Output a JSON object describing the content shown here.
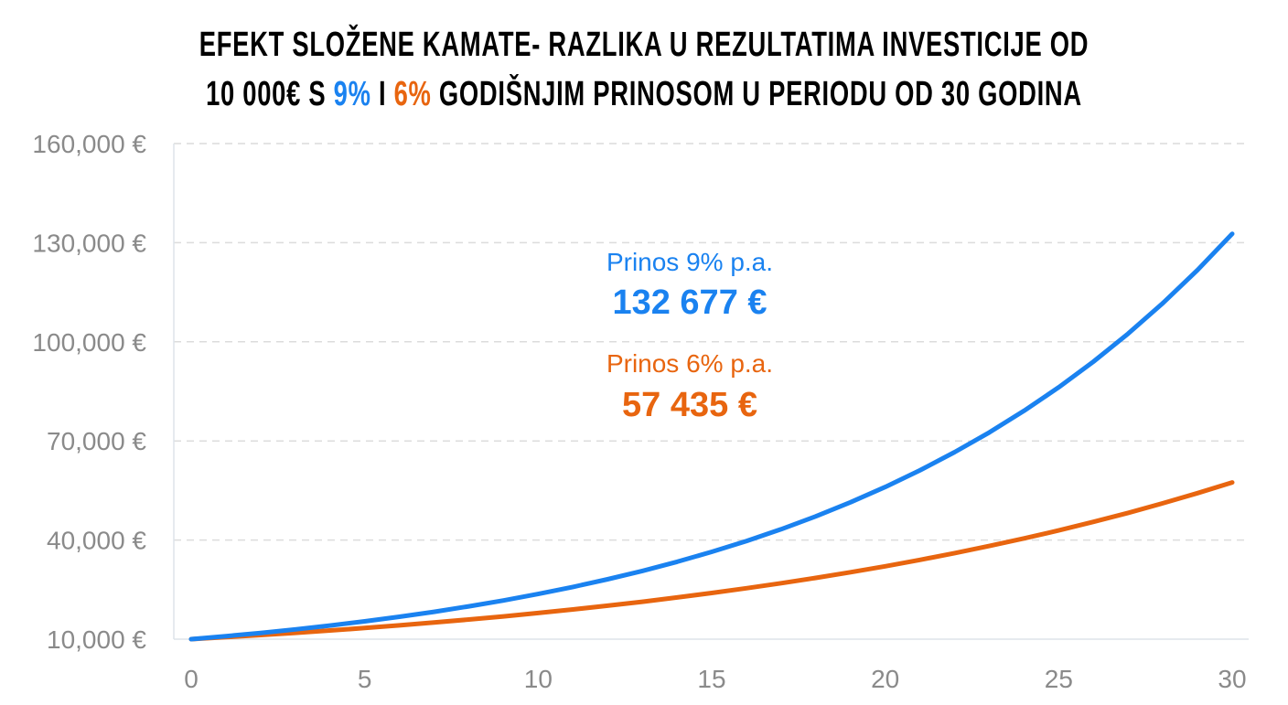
{
  "chart_data": {
    "type": "line",
    "title_line1": "EFEKT SLOŽENE KAMATE- RAZLIKA U REZULTATIMA INVESTICIJE OD",
    "title_line2_prefix": "10 000€ S ",
    "title_rate_a": "9%",
    "title_mid": " I ",
    "title_rate_b": "6%",
    "title_line2_suffix": " GODIŠNJIM PRINOSOM U PERIODU OD 30 GODINA",
    "xlabel": "",
    "ylabel": "",
    "xlim": [
      0,
      30
    ],
    "ylim": [
      10000,
      160000
    ],
    "x_ticks": [
      "0",
      "5",
      "10",
      "15",
      "20",
      "25",
      "30"
    ],
    "y_ticks": [
      "10,000 €",
      "40,000 €",
      "70,000 €",
      "100,000 €",
      "130,000 €",
      "160,000 €"
    ],
    "grid": "horizontal dashed",
    "x": [
      0,
      1,
      2,
      3,
      4,
      5,
      6,
      7,
      8,
      9,
      10,
      11,
      12,
      13,
      14,
      15,
      16,
      17,
      18,
      19,
      20,
      21,
      22,
      23,
      24,
      25,
      26,
      27,
      28,
      29,
      30
    ],
    "series": [
      {
        "name": "Prinos 9% p.a.",
        "color": "#1a82f0",
        "final_label": "132 677 €",
        "values": [
          10000,
          10900,
          11881,
          12950,
          14116,
          15386,
          16771,
          18280,
          19926,
          21719,
          23674,
          25804,
          28127,
          30658,
          33417,
          36425,
          39703,
          43276,
          47171,
          51417,
          56044,
          61088,
          66586,
          72579,
          79111,
          86231,
          93992,
          102451,
          111671,
          121722,
          132677
        ]
      },
      {
        "name": "Prinos 6% p.a.",
        "color": "#e8650f",
        "final_label": "57 435 €",
        "values": [
          10000,
          10600,
          11236,
          11910,
          12625,
          13382,
          14185,
          15036,
          15938,
          16895,
          17908,
          18983,
          20122,
          21329,
          22609,
          23966,
          25404,
          26928,
          28543,
          30256,
          32071,
          33996,
          36035,
          38197,
          40489,
          42919,
          45494,
          48223,
          51117,
          54184,
          57435
        ]
      }
    ]
  }
}
